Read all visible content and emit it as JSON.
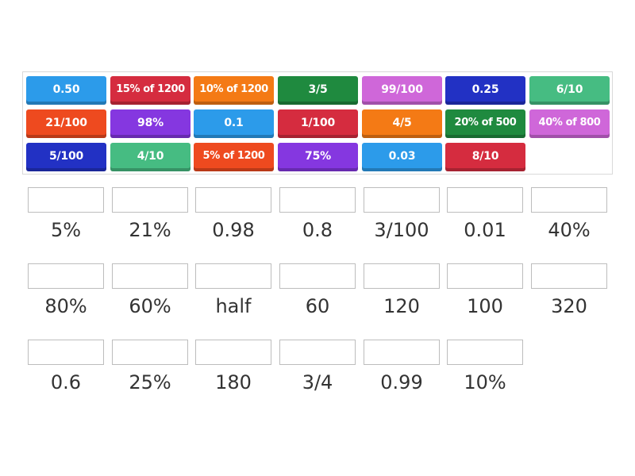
{
  "tiles": [
    {
      "label": "0.50",
      "color": "#2c9bea"
    },
    {
      "label": "15% of 1200",
      "color": "#d52c3f"
    },
    {
      "label": "10% of 1200",
      "color": "#f47a15"
    },
    {
      "label": "3/5",
      "color": "#1f8a3f"
    },
    {
      "label": "99/100",
      "color": "#cf67d9"
    },
    {
      "label": "0.25",
      "color": "#2231c4"
    },
    {
      "label": "6/10",
      "color": "#46bc82"
    },
    {
      "label": "21/100",
      "color": "#ee4a1f"
    },
    {
      "label": "98%",
      "color": "#8537e0"
    },
    {
      "label": "0.1",
      "color": "#2c9bea"
    },
    {
      "label": "1/100",
      "color": "#d52c3f"
    },
    {
      "label": "4/5",
      "color": "#f47a15"
    },
    {
      "label": "20% of 500",
      "color": "#1f8a3f"
    },
    {
      "label": "40% of 800",
      "color": "#cf67d9"
    },
    {
      "label": "5/100",
      "color": "#2231c4"
    },
    {
      "label": "4/10",
      "color": "#46bc82"
    },
    {
      "label": "5% of 1200",
      "color": "#ee4a1f"
    },
    {
      "label": "75%",
      "color": "#8537e0"
    },
    {
      "label": "0.03",
      "color": "#2c9bea"
    },
    {
      "label": "8/10",
      "color": "#d52c3f"
    }
  ],
  "targets": [
    {
      "label": "5%"
    },
    {
      "label": "21%"
    },
    {
      "label": "0.98"
    },
    {
      "label": "0.8"
    },
    {
      "label": "3/100"
    },
    {
      "label": "0.01"
    },
    {
      "label": "40%"
    },
    {
      "label": "80%"
    },
    {
      "label": "60%"
    },
    {
      "label": "half"
    },
    {
      "label": "60"
    },
    {
      "label": "120"
    },
    {
      "label": "100"
    },
    {
      "label": "320"
    },
    {
      "label": "0.6"
    },
    {
      "label": "25%"
    },
    {
      "label": "180"
    },
    {
      "label": "3/4"
    },
    {
      "label": "0.99"
    },
    {
      "label": "10%"
    }
  ]
}
